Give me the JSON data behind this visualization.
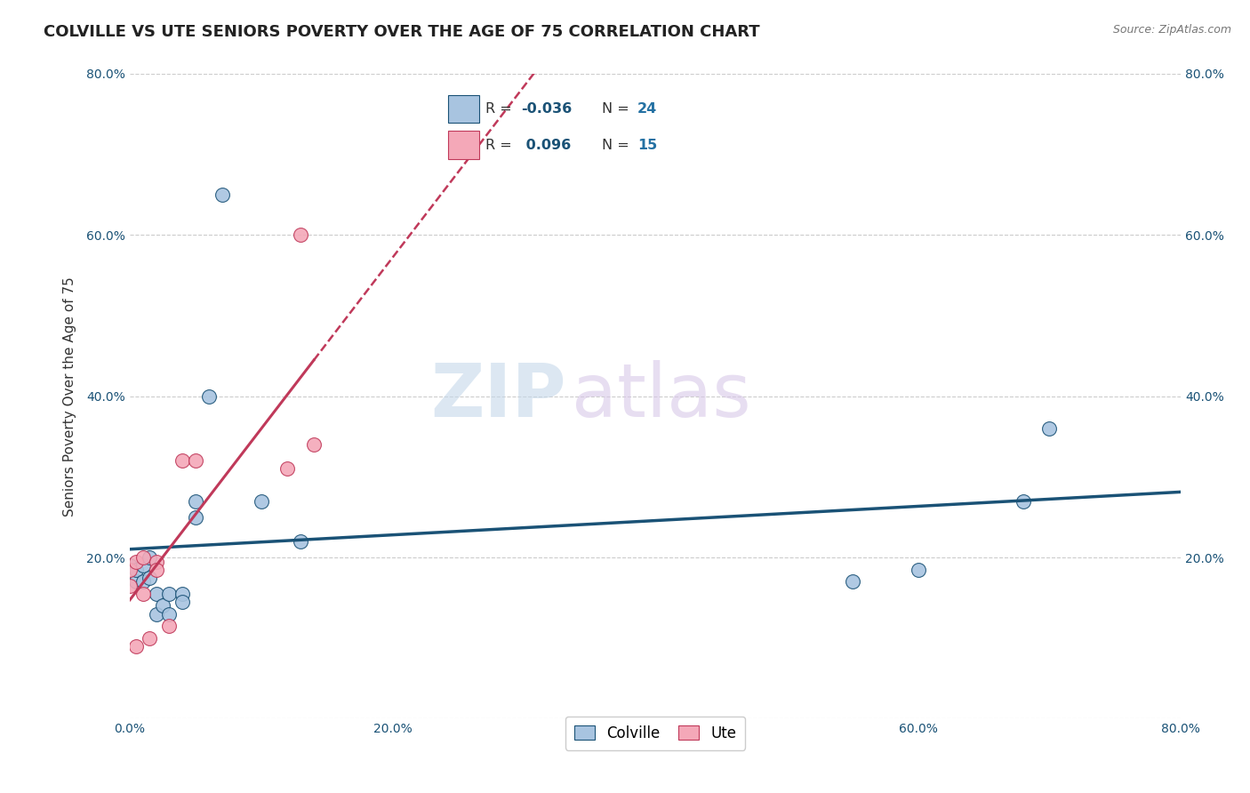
{
  "title": "COLVILLE VS UTE SENIORS POVERTY OVER THE AGE OF 75 CORRELATION CHART",
  "source": "Source: ZipAtlas.com",
  "ylabel": "Seniors Poverty Over the Age of 75",
  "colville_x": [
    0.0,
    0.005,
    0.005,
    0.01,
    0.01,
    0.015,
    0.015,
    0.02,
    0.02,
    0.025,
    0.03,
    0.03,
    0.04,
    0.04,
    0.05,
    0.05,
    0.06,
    0.07,
    0.1,
    0.13,
    0.55,
    0.6,
    0.68,
    0.7
  ],
  "colville_y": [
    0.19,
    0.17,
    0.185,
    0.17,
    0.19,
    0.175,
    0.2,
    0.155,
    0.13,
    0.14,
    0.13,
    0.155,
    0.155,
    0.145,
    0.25,
    0.27,
    0.4,
    0.65,
    0.27,
    0.22,
    0.17,
    0.185,
    0.27,
    0.36
  ],
  "ute_x": [
    0.0,
    0.0,
    0.005,
    0.005,
    0.01,
    0.01,
    0.015,
    0.02,
    0.02,
    0.03,
    0.04,
    0.05,
    0.12,
    0.13,
    0.14
  ],
  "ute_y": [
    0.185,
    0.165,
    0.195,
    0.09,
    0.155,
    0.2,
    0.1,
    0.195,
    0.185,
    0.115,
    0.32,
    0.32,
    0.31,
    0.6,
    0.34
  ],
  "colville_color": "#a8c4e0",
  "ute_color": "#f4a8b8",
  "colville_line_color": "#1a5276",
  "ute_line_color": "#c0395a",
  "colville_R": -0.036,
  "colville_N": 24,
  "ute_R": 0.096,
  "ute_N": 15,
  "xlim": [
    0.0,
    0.8
  ],
  "ylim": [
    0.0,
    0.8
  ],
  "xticks": [
    0.0,
    0.2,
    0.4,
    0.6,
    0.8
  ],
  "yticks": [
    0.0,
    0.2,
    0.4,
    0.6,
    0.8
  ],
  "grid_color": "#cccccc",
  "background_color": "#ffffff",
  "title_fontsize": 13,
  "axis_label_fontsize": 11,
  "tick_fontsize": 10,
  "marker_size": 130,
  "watermark_zip_color": "#c5d8ea",
  "watermark_atlas_color": "#d8c8e8",
  "legend_R_color": "#1a5276",
  "legend_N_color": "#2471a3"
}
